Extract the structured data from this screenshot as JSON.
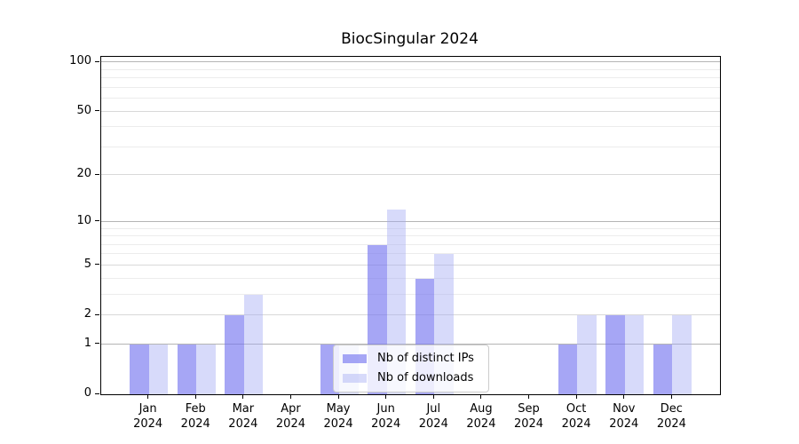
{
  "title": "BiocSingular 2024",
  "legend": {
    "items": [
      {
        "label": "Nb of distinct IPs",
        "series_key": "ips"
      },
      {
        "label": "Nb of downloads",
        "series_key": "downloads"
      }
    ]
  },
  "colors": {
    "ips_bar": "rgba(115,115,240,0.64)",
    "downloads_bar": "rgba(160,166,242,0.42)",
    "grid_power10": "#b5b5b5",
    "grid_labeled": "#d9d9d9",
    "grid_minor": "#ececec",
    "axis": "#000000",
    "text": "#000000"
  },
  "chart_data": {
    "type": "bar",
    "title": "BiocSingular 2024",
    "year_label": "2024",
    "categories": [
      "Jan",
      "Feb",
      "Mar",
      "Apr",
      "May",
      "Jun",
      "Jul",
      "Aug",
      "Sep",
      "Oct",
      "Nov",
      "Dec"
    ],
    "series": [
      {
        "name": "Nb of distinct IPs",
        "values": [
          1,
          1,
          2,
          0,
          1,
          7,
          4,
          0,
          0,
          1,
          2,
          1
        ]
      },
      {
        "name": "Nb of downloads",
        "values": [
          1,
          1,
          3,
          0,
          1,
          12,
          6,
          0,
          0,
          2,
          2,
          2
        ]
      }
    ],
    "xlabel": "",
    "ylabel": "",
    "yscale": "log1p",
    "ylim": [
      0,
      108
    ],
    "ytick_values": [
      0,
      1,
      2,
      5,
      10,
      20,
      50,
      100
    ],
    "grid_values": [
      1,
      2,
      3,
      4,
      5,
      6,
      7,
      8,
      9,
      10,
      20,
      30,
      40,
      50,
      60,
      70,
      80,
      90,
      100
    ],
    "grid_power10_values": [
      1,
      10,
      100
    ],
    "grid_labeled_values": [
      2,
      5,
      20,
      50
    ],
    "legend_position": "lower-center-inside",
    "grid": true
  }
}
